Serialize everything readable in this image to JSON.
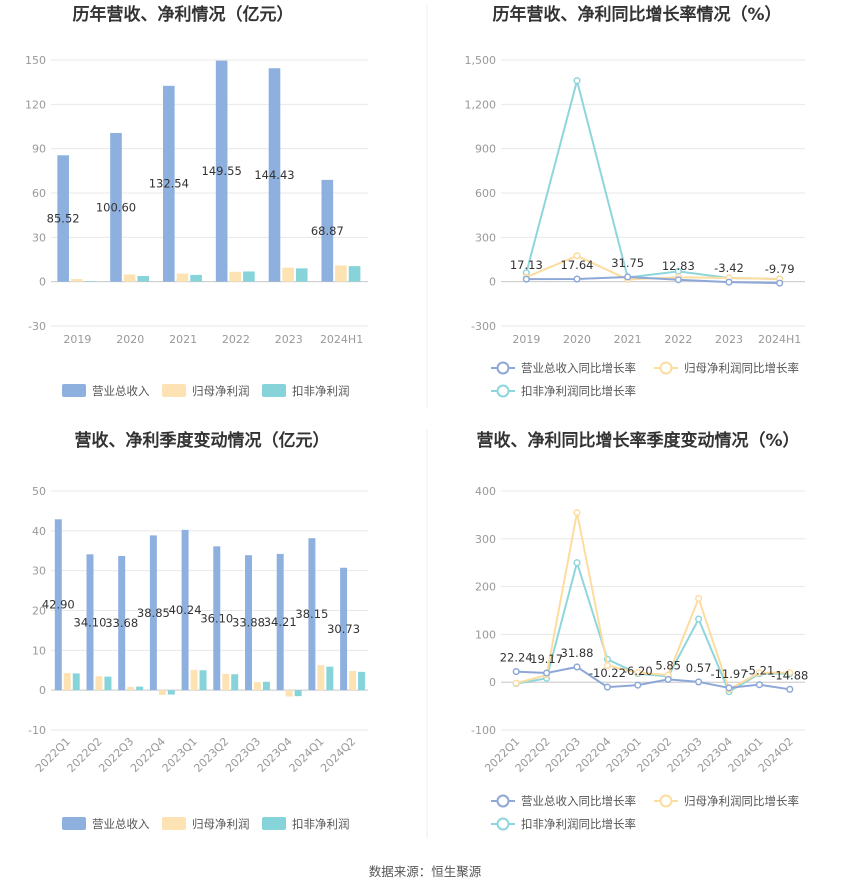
{
  "colors": {
    "revenue": "#8eb0de",
    "net_profit": "#fde3b4",
    "deducted_profit": "#86d3d9",
    "rev_line": "#8da8d8",
    "np_line": "#fddca0",
    "dp_line": "#8fd6dc"
  },
  "source": "数据来源：恒生聚源",
  "legend_bar": [
    "营业总收入",
    "归母净利润",
    "扣非净利润"
  ],
  "legend_line": [
    "营业总收入同比增长率",
    "归母净利润同比增长率",
    "扣非净利润同比增长率"
  ],
  "chart_data": [
    {
      "type": "bar",
      "title": "历年营收、净利情况（亿元）",
      "categories": [
        "2019",
        "2020",
        "2021",
        "2022",
        "2023",
        "2024H1"
      ],
      "ylim": [
        -30,
        150
      ],
      "yticks": [
        "150",
        "120",
        "90",
        "60",
        "30",
        "0",
        "-30"
      ],
      "series": [
        {
          "name": "营业总收入",
          "values": [
            85.52,
            100.6,
            132.54,
            149.55,
            144.43,
            68.87
          ],
          "labels": [
            "85.52",
            "100.60",
            "132.54",
            "149.55",
            "144.43",
            "68.87"
          ]
        },
        {
          "name": "归母净利润",
          "values": [
            1.8,
            4.9,
            5.5,
            6.7,
            9.5,
            11.0
          ]
        },
        {
          "name": "扣非净利润",
          "values": [
            0.3,
            3.8,
            4.6,
            6.9,
            9.0,
            10.5
          ]
        }
      ],
      "legend": "bottom",
      "grid": true
    },
    {
      "type": "line",
      "title": "历年营收、净利同比增长率情况（%）",
      "categories": [
        "2019",
        "2020",
        "2021",
        "2022",
        "2023",
        "2024H1"
      ],
      "ylim": [
        -300,
        1500
      ],
      "yticks": [
        "1,500",
        "1,200",
        "900",
        "600",
        "300",
        "0",
        "-300"
      ],
      "series": [
        {
          "name": "营业总收入同比增长率",
          "values": [
            17.13,
            17.64,
            31.75,
            12.83,
            -3.42,
            -9.79
          ],
          "labels": [
            "17.13",
            "17.64",
            "31.75",
            "12.83",
            "-3.42",
            "-9.79"
          ]
        },
        {
          "name": "归母净利润同比增长率",
          "values": [
            30,
            175,
            15,
            30,
            25,
            18
          ]
        },
        {
          "name": "扣非净利润同比增长率",
          "values": [
            60,
            1360,
            28,
            70,
            25,
            18
          ]
        }
      ],
      "legend": "bottom",
      "grid": true
    },
    {
      "type": "bar",
      "title": "营收、净利季度变动情况（亿元）",
      "categories": [
        "2022Q1",
        "2022Q2",
        "2022Q3",
        "2022Q4",
        "2023Q1",
        "2023Q2",
        "2023Q3",
        "2023Q4",
        "2024Q1",
        "2024Q2"
      ],
      "ylim": [
        -10,
        50
      ],
      "yticks": [
        "50",
        "40",
        "30",
        "20",
        "10",
        "0",
        "-10"
      ],
      "series": [
        {
          "name": "营业总收入",
          "values": [
            42.9,
            34.1,
            33.68,
            38.85,
            40.24,
            36.1,
            33.88,
            34.21,
            38.15,
            30.73
          ],
          "labels": [
            "42.90",
            "34.10",
            "33.68",
            "38.85",
            "40.24",
            "36.10",
            "33.88",
            "34.21",
            "38.15",
            "30.73"
          ]
        },
        {
          "name": "归母净利润",
          "values": [
            4.3,
            3.5,
            0.8,
            -1.2,
            5.1,
            4.1,
            2.0,
            -1.6,
            6.3,
            4.8
          ]
        },
        {
          "name": "扣非净利润",
          "values": [
            4.2,
            3.4,
            0.9,
            -1.1,
            5.0,
            4.0,
            2.1,
            -1.5,
            5.9,
            4.6
          ]
        }
      ],
      "legend": "bottom",
      "grid": true
    },
    {
      "type": "line",
      "title": "营收、净利同比增长率季度变动情况（%）",
      "categories": [
        "2022Q1",
        "2022Q2",
        "2022Q3",
        "2022Q4",
        "2023Q1",
        "2023Q2",
        "2023Q3",
        "2023Q4",
        "2024Q1",
        "2024Q2"
      ],
      "ylim": [
        -100,
        400
      ],
      "yticks": [
        "400",
        "300",
        "200",
        "100",
        "0",
        "-100"
      ],
      "series": [
        {
          "name": "营业总收入同比增长率",
          "values": [
            22.24,
            19.17,
            31.88,
            -10.22,
            -6.2,
            5.85,
            0.57,
            -11.97,
            -5.21,
            -14.88
          ],
          "labels": [
            "22.24",
            "19.17",
            "31.88",
            "-10.22",
            "-6.20",
            "5.85",
            "0.57",
            "-11.97",
            "-5.21",
            "-14.88"
          ]
        },
        {
          "name": "归母净利润同比增长率",
          "values": [
            -2,
            15,
            355,
            35,
            20,
            15,
            175,
            -15,
            20,
            20
          ]
        },
        {
          "name": "扣非净利润同比增长率",
          "values": [
            -3,
            8,
            250,
            48,
            18,
            12,
            132,
            -20,
            18,
            18
          ]
        }
      ],
      "legend": "bottom",
      "grid": true
    }
  ]
}
